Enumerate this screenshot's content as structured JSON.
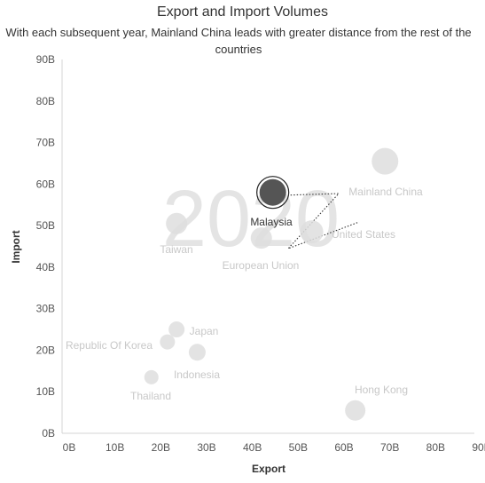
{
  "chart_data": {
    "type": "scatter",
    "title": "Export and Import Volumes",
    "subtitle": "With each subsequent year, Mainland China leads with greater distance from the rest of the countries",
    "xlabel": "Export",
    "ylabel": "Import",
    "xlim": [
      0,
      90
    ],
    "ylim": [
      0,
      90
    ],
    "x_ticks": [
      "0B",
      "10B",
      "20B",
      "30B",
      "40B",
      "50B",
      "60B",
      "70B",
      "80B",
      "90B"
    ],
    "y_ticks": [
      "0B",
      "10B",
      "20B",
      "30B",
      "40B",
      "50B",
      "60B",
      "70B",
      "80B",
      "90B"
    ],
    "grid": false,
    "year_watermark": "2020",
    "highlighted": "Malaysia",
    "colors": {
      "faded": "#dedede",
      "highlight": "#555555",
      "label_faded": "#c8c8c8"
    },
    "points": [
      {
        "name": "Mainland China",
        "x": 70.5,
        "y": 65.5,
        "size": 30
      },
      {
        "name": "United States",
        "x": 54.5,
        "y": 48.5,
        "size": 26
      },
      {
        "name": "Malaysia",
        "x": 46,
        "y": 58,
        "size": 30
      },
      {
        "name": "Taiwan",
        "x": 25,
        "y": 50.5,
        "size": 24
      },
      {
        "name": "European Union",
        "x": 43.5,
        "y": 47,
        "size": 24
      },
      {
        "name": "Japan",
        "x": 25,
        "y": 25,
        "size": 18
      },
      {
        "name": "Republic Of Korea",
        "x": 23,
        "y": 22,
        "size": 17
      },
      {
        "name": "Indonesia",
        "x": 29.5,
        "y": 19.5,
        "size": 19
      },
      {
        "name": "Thailand",
        "x": 19.5,
        "y": 13.5,
        "size": 16
      },
      {
        "name": "Hong Kong",
        "x": 64,
        "y": 5.5,
        "size": 23
      }
    ]
  }
}
